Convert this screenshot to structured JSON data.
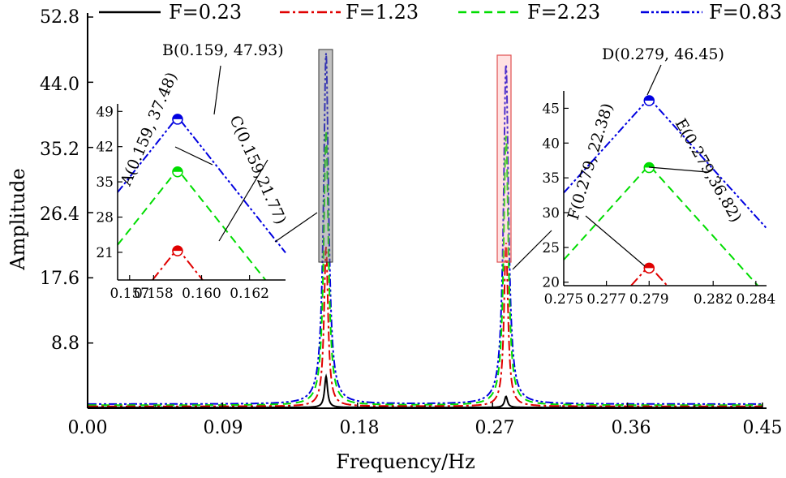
{
  "chart_data": {
    "type": "line",
    "xlabel": "Frequency/Hz",
    "ylabel": "Amplitude",
    "xlim": [
      0.0,
      0.45
    ],
    "ylim": [
      0.0,
      52.8
    ],
    "x_ticks": [
      "0.00",
      "0.09",
      "0.18",
      "0.27",
      "0.36",
      "0.45"
    ],
    "y_ticks": [
      "8.8",
      "17.6",
      "26.4",
      "35.2",
      "44.0",
      "52.8"
    ],
    "series": [
      {
        "name": "F=0.23",
        "color": "#000000",
        "style": "solid",
        "peaks": [
          {
            "x": 0.159,
            "y": 4.3
          },
          {
            "x": 0.279,
            "y": 1.6
          }
        ]
      },
      {
        "name": "F=1.23",
        "color": "#e00000",
        "style": "dashdot",
        "peaks": [
          {
            "x": 0.159,
            "y": 21.77
          },
          {
            "x": 0.279,
            "y": 22.38
          }
        ]
      },
      {
        "name": "F=2.23",
        "color": "#00dd00",
        "style": "dash",
        "peaks": [
          {
            "x": 0.159,
            "y": 37.48
          },
          {
            "x": 0.279,
            "y": 36.82
          }
        ]
      },
      {
        "name": "F=0.83",
        "color": "#0000e0",
        "style": "dashdotdot",
        "peaks": [
          {
            "x": 0.159,
            "y": 47.93
          },
          {
            "x": 0.279,
            "y": 46.45
          }
        ]
      }
    ],
    "insets": [
      {
        "name": "left",
        "xlim": [
          0.1565,
          0.1635
        ],
        "ylim": [
          15.5,
          50.5
        ],
        "x_ticks": [
          "0.157",
          "0.158",
          "0.160",
          "0.162"
        ],
        "x_tick_values": [
          0.157,
          0.158,
          0.16,
          0.162
        ],
        "y_ticks": [
          "21",
          "28",
          "35",
          "42",
          "49"
        ],
        "y_tick_values": [
          21,
          28,
          35,
          42,
          49
        ]
      },
      {
        "name": "right",
        "xlim": [
          0.275,
          0.2845
        ],
        "ylim": [
          19.5,
          47.5
        ],
        "x_ticks": [
          "0.275",
          "0.277",
          "0.279",
          "0.282",
          "0.284"
        ],
        "x_tick_values": [
          0.275,
          0.277,
          0.279,
          0.282,
          0.284
        ],
        "y_ticks": [
          "20",
          "25",
          "30",
          "35",
          "40",
          "45"
        ],
        "y_tick_values": [
          20,
          25,
          30,
          35,
          40,
          45
        ]
      }
    ],
    "annotations": [
      {
        "label": "A(0.159, 37.48)"
      },
      {
        "label": "B(0.159, 47.93)"
      },
      {
        "label": "C(0.159,21.77)"
      },
      {
        "label": "D(0.279, 46.45)"
      },
      {
        "label": "E(0.279,36.82)"
      },
      {
        "label": "F(0.279, 22.38)"
      }
    ]
  }
}
